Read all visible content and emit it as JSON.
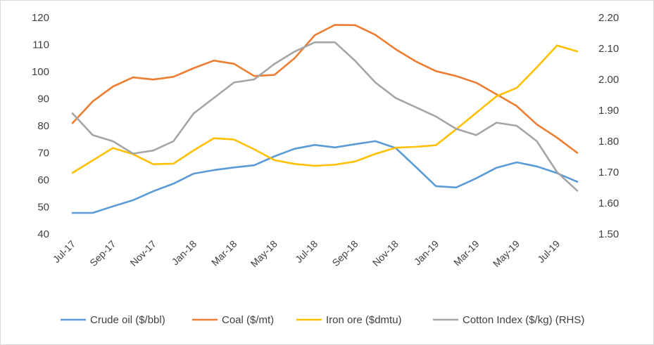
{
  "chart_data": {
    "type": "line",
    "x": [
      "Jul-17",
      "Aug-17",
      "Sep-17",
      "Oct-17",
      "Nov-17",
      "Dec-17",
      "Jan-18",
      "Feb-18",
      "Mar-18",
      "Apr-18",
      "May-18",
      "Jun-18",
      "Jul-18",
      "Aug-18",
      "Sep-18",
      "Oct-18",
      "Nov-18",
      "Dec-18",
      "Jan-19",
      "Feb-19",
      "Mar-19",
      "Apr-19",
      "May-19",
      "Jun-19",
      "Jul-19",
      "Aug-19"
    ],
    "x_tick_labels": [
      "Jul-17",
      "Sep-17",
      "Nov-17",
      "Jan-18",
      "Mar-18",
      "May-18",
      "Jul-18",
      "Sep-18",
      "Nov-18",
      "Jan-19",
      "Mar-19",
      "May-19",
      "Jul-19"
    ],
    "y_left": {
      "min": 40,
      "max": 120,
      "ticks": [
        "40",
        "50",
        "60",
        "70",
        "80",
        "90",
        "100",
        "110",
        "120"
      ]
    },
    "y_right": {
      "min": 1.5,
      "max": 2.2,
      "ticks": [
        "1.50",
        "1.60",
        "1.70",
        "1.80",
        "1.90",
        "2.00",
        "2.10",
        "2.20"
      ]
    },
    "grid": false,
    "legend_position": "bottom",
    "series": [
      {
        "name": "Crude oil ($/bbl)",
        "axis": "left",
        "color": "#5b9bd5",
        "values": [
          47.8,
          47.8,
          50.2,
          52.5,
          55.8,
          58.6,
          62.3,
          63.6,
          64.6,
          65.4,
          68.7,
          71.5,
          72.9,
          72.0,
          73.2,
          74.3,
          71.8,
          64.8,
          57.7,
          57.2,
          60.6,
          64.5,
          66.5,
          65.0,
          62.5,
          59.3
        ]
      },
      {
        "name": "Coal ($/mt)",
        "axis": "left",
        "color": "#ed7d31",
        "values": [
          81.0,
          89.0,
          94.5,
          97.9,
          97.1,
          98.1,
          101.3,
          104.1,
          102.9,
          98.4,
          98.8,
          105.0,
          113.5,
          117.3,
          117.2,
          113.6,
          108.3,
          103.8,
          100.2,
          98.4,
          95.9,
          91.6,
          87.3,
          80.5,
          75.6,
          70.0
        ]
      },
      {
        "name": "Iron ore ($dmtu)",
        "axis": "left",
        "color": "#ffc000",
        "values": [
          62.6,
          67.2,
          71.8,
          69.5,
          65.8,
          66.0,
          70.9,
          75.4,
          74.9,
          71.3,
          67.3,
          65.9,
          65.2,
          65.6,
          66.8,
          69.6,
          71.9,
          72.2,
          72.8,
          78.7,
          84.8,
          90.9,
          94.0,
          101.6,
          109.7,
          107.5
        ]
      },
      {
        "name": "Cotton Index ($/kg) (RHS)",
        "axis": "right",
        "color": "#a5a5a5",
        "values": [
          1.89,
          1.82,
          1.8,
          1.76,
          1.77,
          1.8,
          1.89,
          1.94,
          1.99,
          2.0,
          2.05,
          2.09,
          2.12,
          2.12,
          2.06,
          1.99,
          1.94,
          1.91,
          1.88,
          1.84,
          1.82,
          1.86,
          1.85,
          1.8,
          1.7,
          1.64
        ]
      }
    ]
  }
}
